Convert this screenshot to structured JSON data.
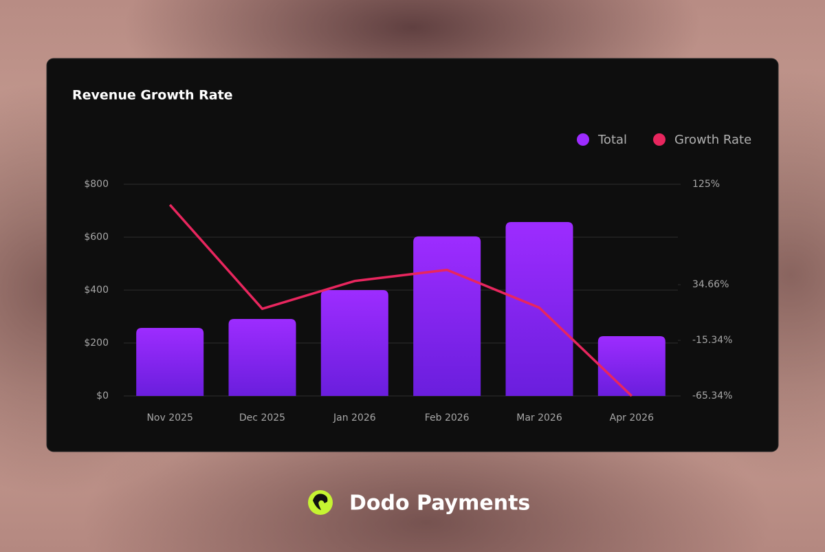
{
  "chart_data": {
    "type": "bar-line",
    "title": "Revenue Growth Rate",
    "categories": [
      "Nov 2025",
      "Dec 2025",
      "Jan 2026",
      "Feb 2026",
      "Mar 2026",
      "Apr 2026"
    ],
    "series": [
      {
        "name": "Total",
        "color": "#9d2cff",
        "type": "bar",
        "axis": "y",
        "values": [
          257,
          291,
          400,
          603,
          657,
          226
        ]
      },
      {
        "name": "Growth Rate",
        "color": "#e8265e",
        "type": "line",
        "axis": "y2",
        "values": [
          106.5,
          13,
          38,
          48,
          14,
          -65.34
        ]
      }
    ],
    "ylim": [
      0,
      800
    ],
    "yticks": [
      {
        "value": 0,
        "label": "$0"
      },
      {
        "value": 200,
        "label": "$200"
      },
      {
        "value": 400,
        "label": "$400"
      },
      {
        "value": 600,
        "label": "$600"
      },
      {
        "value": 800,
        "label": "$800"
      }
    ],
    "y2lim": [
      -65.34,
      125
    ],
    "y2ticks": [
      {
        "value": -65.34,
        "label": "-65.34%"
      },
      {
        "value": -15.34,
        "label": "-15.34%"
      },
      {
        "value": 34.66,
        "label": "34.66%"
      },
      {
        "value": 125,
        "label": "125%"
      }
    ],
    "grid": true
  },
  "footer": {
    "brand": "Dodo Payments"
  }
}
